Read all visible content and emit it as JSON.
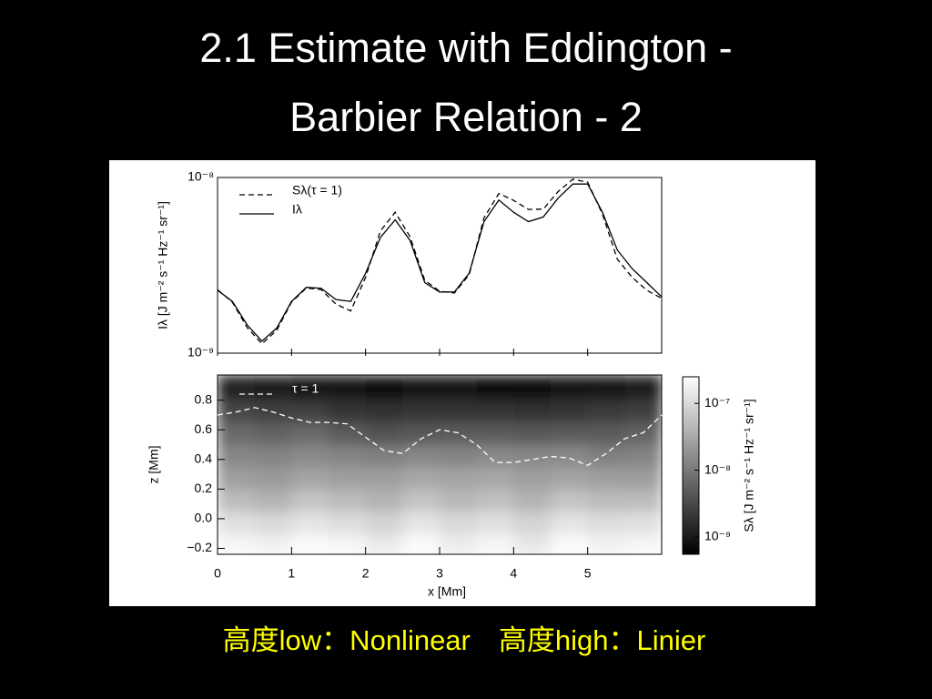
{
  "title": "2.1 Estimate with Eddington - Barbier Relation - 2",
  "caption": "高度low：Nonlinear　高度high：Linier",
  "chart_data": [
    {
      "type": "line",
      "ylabel": "Iλ [J m⁻² s⁻¹ Hz⁻¹ sr⁻¹]",
      "ylog": true,
      "xlim": [
        0,
        6
      ],
      "ylim": [
        1e-09,
        1e-08
      ],
      "yticks": [
        {
          "value": 1e-09,
          "label": "10⁻⁹"
        },
        {
          "value": 1e-08,
          "label": "10⁻⁸"
        }
      ],
      "legend": "upper left",
      "x": [
        0,
        0.2,
        0.4,
        0.6,
        0.8,
        1.0,
        1.2,
        1.4,
        1.6,
        1.8,
        2.0,
        2.2,
        2.4,
        2.6,
        2.8,
        3.0,
        3.2,
        3.4,
        3.6,
        3.8,
        4.0,
        4.2,
        4.4,
        4.6,
        4.8,
        5.0,
        5.2,
        5.4,
        5.6,
        5.8,
        6.0
      ],
      "series": [
        {
          "name": "Sλ(τ = 1)",
          "color": "#000000",
          "dash": true,
          "values": [
            2.3e-09,
            1.95e-09,
            1.4e-09,
            1.13e-09,
            1.35e-09,
            1.95e-09,
            2.35e-09,
            2.3e-09,
            1.9e-09,
            1.74e-09,
            2.7e-09,
            4.95e-09,
            6.34e-09,
            4.6e-09,
            2.6e-09,
            2.25e-09,
            2.2e-09,
            2.8e-09,
            5.9e-09,
            8.11e-09,
            7.4e-09,
            6.58e-09,
            6.6e-09,
            8.3e-09,
            9.76e-09,
            9.4e-09,
            6.2e-09,
            3.43e-09,
            2.7e-09,
            2.28e-09,
            2.05e-09
          ]
        },
        {
          "name": "Iλ",
          "color": "#000000",
          "dash": false,
          "values": [
            2.28e-09,
            1.97e-09,
            1.45e-09,
            1.17e-09,
            1.39e-09,
            1.97e-09,
            2.37e-09,
            2.34e-09,
            2.02e-09,
            1.97e-09,
            2.85e-09,
            4.55e-09,
            5.74e-09,
            4.38e-09,
            2.52e-09,
            2.23e-09,
            2.23e-09,
            2.85e-09,
            5.61e-09,
            7.44e-09,
            6.34e-09,
            5.61e-09,
            5.96e-09,
            7.62e-09,
            9.18e-09,
            9.18e-09,
            6.34e-09,
            3.87e-09,
            3.03e-09,
            2.52e-09,
            2.09e-09
          ]
        }
      ]
    },
    {
      "type": "heatmap",
      "xlabel": "x [Mm]",
      "ylabel": "z [Mm]",
      "xlim": [
        0,
        6
      ],
      "ylim": [
        -0.24,
        0.97
      ],
      "xticks": [
        0,
        1,
        2,
        3,
        4,
        5
      ],
      "yticks": [
        {
          "value": -0.2,
          "label": "−0.2"
        },
        {
          "value": 0,
          "label": "0.0"
        },
        0.2,
        0.4,
        0.6,
        0.8
      ],
      "x_edges": [
        0,
        0.5,
        1,
        1.5,
        2,
        2.5,
        3,
        3.5,
        4,
        4.5,
        5,
        5.5,
        6
      ],
      "z_edges": [
        -0.24,
        -0.1,
        0.05,
        0.2,
        0.35,
        0.5,
        0.65,
        0.8,
        0.97
      ],
      "values": [
        [
          2e-07,
          1.8e-07,
          2.2e-07,
          2e-07,
          1.5e-07,
          2.2e-07,
          1.6e-07,
          2e-07,
          1.4e-07,
          2.2e-07,
          1.8e-07,
          2e-07
        ],
        [
          1.2e-07,
          1e-07,
          1.3e-07,
          1.1e-07,
          9e-08,
          1.3e-07,
          1e-07,
          1.2e-07,
          9e-08,
          1.3e-07,
          1.1e-07,
          1.2e-07
        ],
        [
          5e-08,
          4e-08,
          6e-08,
          5e-08,
          4e-08,
          6e-08,
          4.5e-08,
          5.5e-08,
          4e-08,
          6e-08,
          5e-08,
          5e-08
        ],
        [
          2.5e-08,
          2.2e-08,
          2.8e-08,
          2.5e-08,
          2.5e-08,
          3e-08,
          2.8e-08,
          3e-08,
          2.5e-08,
          2.8e-08,
          2.5e-08,
          2.4e-08
        ],
        [
          1.4e-08,
          1.3e-08,
          1.5e-08,
          1.3e-08,
          1.2e-08,
          1.4e-08,
          1.3e-08,
          1.5e-08,
          1.4e-08,
          1.5e-08,
          1.2e-08,
          1.3e-08
        ],
        [
          7e-09,
          6e-09,
          7e-09,
          5e-09,
          4e-09,
          4.5e-09,
          5e-09,
          5e-09,
          4.5e-09,
          5e-09,
          5e-09,
          6e-09
        ],
        [
          3e-09,
          2.5e-09,
          2.5e-09,
          2e-09,
          1.8e-09,
          2e-09,
          2e-09,
          2e-09,
          1.8e-09,
          2e-09,
          2.2e-09,
          2.5e-09
        ],
        [
          1.2e-09,
          1.1e-09,
          1e-09,
          9e-10,
          8e-10,
          9e-10,
          9e-10,
          8e-10,
          8e-10,
          9e-10,
          1e-09,
          1.1e-09
        ]
      ],
      "colorbar": {
        "label": "Sλ [J m⁻² s⁻¹ Hz⁻¹ sr⁻¹]",
        "log": true,
        "lim": [
          5.5e-10,
          2.5e-07
        ],
        "ticks": [
          {
            "value": 1e-09,
            "label": "10⁻⁹"
          },
          {
            "value": 1e-08,
            "label": "10⁻⁸"
          },
          {
            "value": 1e-07,
            "label": "10⁻⁷"
          }
        ]
      },
      "series": [
        {
          "name": "τ = 1",
          "color": "#ffffff",
          "dash": true,
          "x": [
            0,
            0.25,
            0.5,
            0.75,
            1.0,
            1.25,
            1.5,
            1.75,
            2.0,
            2.25,
            2.5,
            2.75,
            3.0,
            3.25,
            3.5,
            3.75,
            4.0,
            4.25,
            4.5,
            4.75,
            5.0,
            5.25,
            5.5,
            5.75,
            6.0
          ],
          "values": [
            0.7,
            0.72,
            0.75,
            0.72,
            0.68,
            0.65,
            0.65,
            0.64,
            0.55,
            0.46,
            0.44,
            0.54,
            0.6,
            0.58,
            0.5,
            0.38,
            0.38,
            0.4,
            0.42,
            0.41,
            0.36,
            0.44,
            0.54,
            0.58,
            0.7
          ]
        }
      ]
    }
  ]
}
